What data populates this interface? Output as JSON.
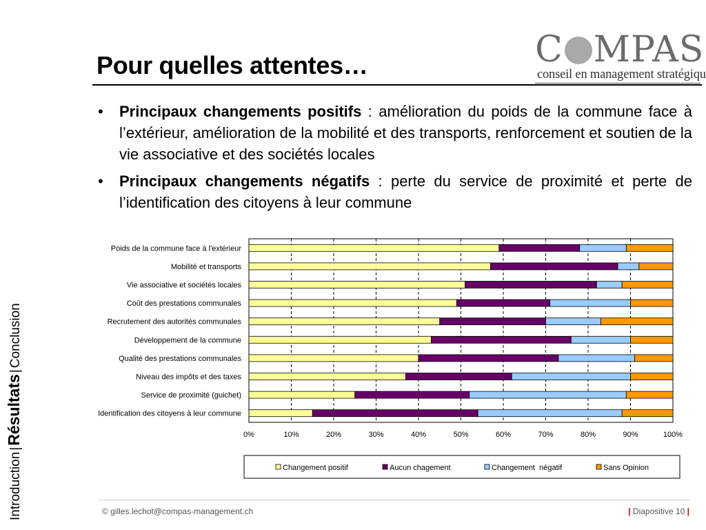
{
  "header": {
    "title": "Pour quelles attentes…",
    "logo_word_left": "C",
    "logo_word_right": "MPAS",
    "logo_tagline": "conseil en management stratégique"
  },
  "bullets": [
    {
      "bold": "Principaux changements positifs",
      "text": " : amélioration du poids de la commune face à l’extérieur, amélioration de la mobilité et des transports, renforcement et soutien de la vie associative et des sociétés locales"
    },
    {
      "bold": "Principaux changements négatifs",
      "text": " : perte du service de proximité et perte de l’identification des citoyens à leur commune"
    }
  ],
  "side_nav": {
    "items": [
      "Introduction",
      "Résultats",
      "Conclusion"
    ],
    "active": "Résultats",
    "separator": "|"
  },
  "footer": {
    "copyright": "© gilles.lechot@compas-management.ch",
    "slide_label": "Diapositive 10",
    "bar": "|"
  },
  "chart_data": {
    "type": "bar",
    "orientation": "horizontal",
    "stacked": "100%",
    "categories": [
      "Poids de la commune face à l'extérieur",
      "Mobilité et transports",
      "Vie associative et sociétés locales",
      "Coût des prestations communales",
      "Recrutement des autorités communales",
      "Développement de la commune",
      "Qualité des prestations communales",
      "Niveau des impôts et des taxes",
      "Service de proximité (guichet)",
      "Identification des citoyens à leur commune"
    ],
    "series": [
      {
        "name": "Changement positif",
        "color": "#ffff99",
        "values": [
          59,
          57,
          51,
          49,
          45,
          43,
          40,
          37,
          25,
          15
        ]
      },
      {
        "name": "Aucun chagement",
        "color": "#660066",
        "values": [
          19,
          30,
          31,
          22,
          25,
          33,
          33,
          25,
          27,
          39
        ]
      },
      {
        "name": "Changement  négatif",
        "color": "#99ccff",
        "values": [
          11,
          5,
          6,
          19,
          13,
          14,
          18,
          28,
          37,
          34
        ]
      },
      {
        "name": "Sans Opinion",
        "color": "#ff9900",
        "values": [
          11,
          8,
          12,
          10,
          17,
          10,
          9,
          10,
          11,
          12
        ]
      }
    ],
    "xlim": [
      0,
      100
    ],
    "x_ticks": [
      "0%",
      "10%",
      "20%",
      "30%",
      "40%",
      "50%",
      "60%",
      "70%",
      "80%",
      "90%",
      "100%"
    ],
    "grid": "vertical dashed",
    "legend_position": "bottom"
  }
}
